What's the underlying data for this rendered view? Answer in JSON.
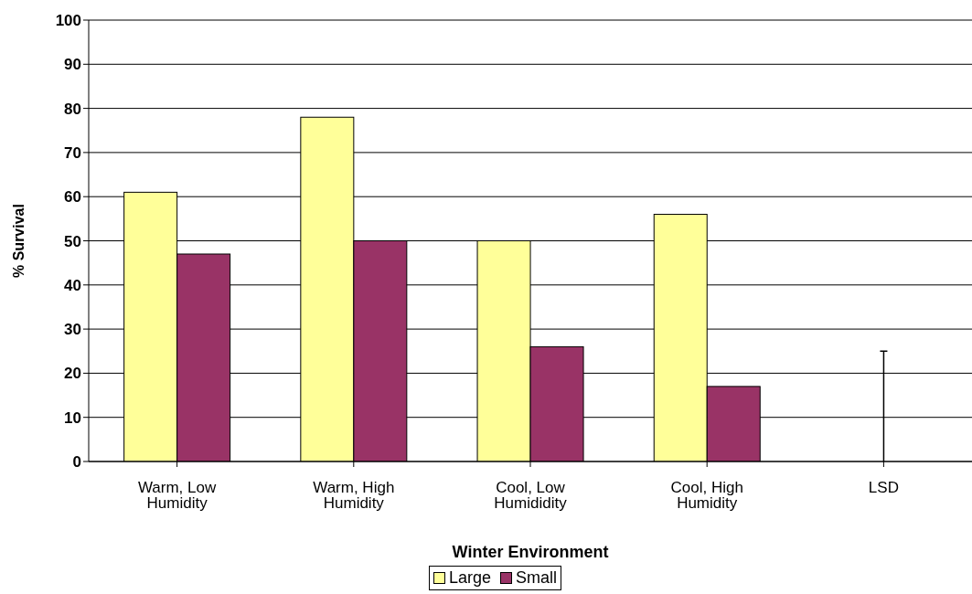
{
  "chart_data": {
    "type": "bar",
    "xlabel": "Winter Environment",
    "ylabel": "% Survival",
    "categories": [
      "Warm, Low Humidity",
      "Warm, High Humidity",
      "Cool, Low Humididity",
      "Cool, High Humidity",
      "LSD"
    ],
    "series": [
      {
        "name": "Large",
        "color": "#ffff99",
        "values": [
          61,
          78,
          50,
          56,
          0
        ],
        "errors": [
          null,
          null,
          null,
          null,
          [
            0,
            25
          ]
        ]
      },
      {
        "name": "Small",
        "color": "#993366",
        "values": [
          47,
          50,
          26,
          17,
          null
        ]
      }
    ],
    "ylim": [
      0,
      100
    ],
    "yticks": [
      0,
      10,
      20,
      30,
      40,
      50,
      60,
      70,
      80,
      90,
      100
    ],
    "grid": "y",
    "legend": "bottom"
  }
}
